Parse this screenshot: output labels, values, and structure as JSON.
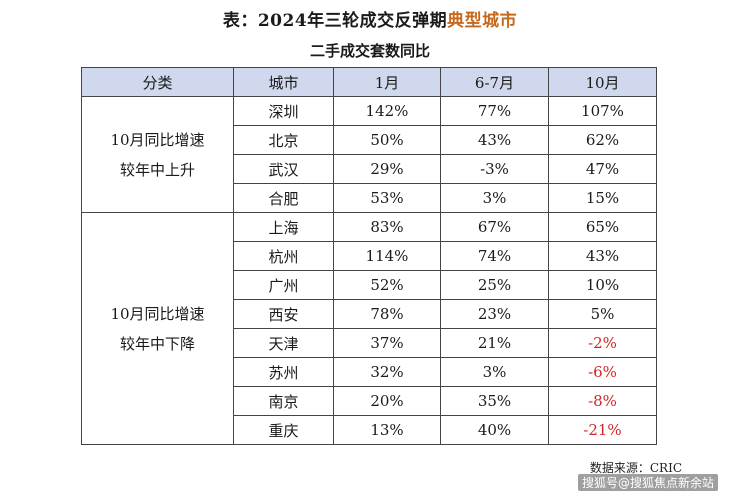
{
  "title": {
    "prefix": "表：2024年三轮成交反弹期",
    "highlight": "典型城市"
  },
  "subtitle": "二手成交套数同比",
  "table": {
    "headers": [
      "分类",
      "城市",
      "1月",
      "6-7月",
      "10月"
    ],
    "groups": [
      {
        "label_line1": "10月同比增速",
        "label_line2": "较年中上升",
        "rows": [
          {
            "city": "深圳",
            "jan": "142%",
            "jun_jul": "77%",
            "oct": "107%",
            "oct_negative": false
          },
          {
            "city": "北京",
            "jan": "50%",
            "jun_jul": "43%",
            "oct": "62%",
            "oct_negative": false
          },
          {
            "city": "武汉",
            "jan": "29%",
            "jun_jul": "-3%",
            "oct": "47%",
            "oct_negative": false
          },
          {
            "city": "合肥",
            "jan": "53%",
            "jun_jul": "3%",
            "oct": "15%",
            "oct_negative": false
          }
        ]
      },
      {
        "label_line1": "10月同比增速",
        "label_line2": "较年中下降",
        "rows": [
          {
            "city": "上海",
            "jan": "83%",
            "jun_jul": "67%",
            "oct": "65%",
            "oct_negative": false
          },
          {
            "city": "杭州",
            "jan": "114%",
            "jun_jul": "74%",
            "oct": "43%",
            "oct_negative": false
          },
          {
            "city": "广州",
            "jan": "52%",
            "jun_jul": "25%",
            "oct": "10%",
            "oct_negative": false
          },
          {
            "city": "西安",
            "jan": "78%",
            "jun_jul": "23%",
            "oct": "5%",
            "oct_negative": false
          },
          {
            "city": "天津",
            "jan": "37%",
            "jun_jul": "21%",
            "oct": "-2%",
            "oct_negative": true
          },
          {
            "city": "苏州",
            "jan": "32%",
            "jun_jul": "3%",
            "oct": "-6%",
            "oct_negative": true
          },
          {
            "city": "南京",
            "jan": "20%",
            "jun_jul": "35%",
            "oct": "-8%",
            "oct_negative": true
          },
          {
            "city": "重庆",
            "jan": "13%",
            "jun_jul": "40%",
            "oct": "-21%",
            "oct_negative": true
          }
        ]
      }
    ]
  },
  "source": "数据来源：CRIC",
  "watermark": "搜狐号@搜狐焦点新余站",
  "colors": {
    "header_bg": "#cfd8ec",
    "highlight": "#c6691d",
    "negative": "#d42424"
  }
}
